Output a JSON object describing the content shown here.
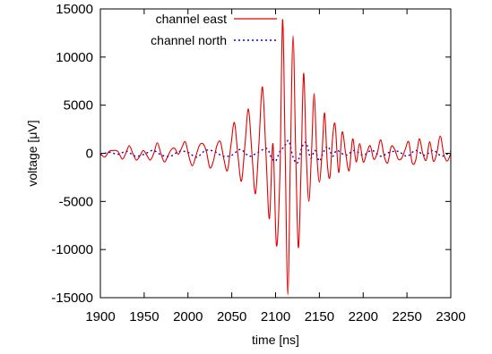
{
  "chart_data": {
    "type": "line",
    "xlabel": "time [ns]",
    "ylabel": "voltage [μV]",
    "xlim": [
      1900,
      2300
    ],
    "ylim": [
      -15000,
      15000
    ],
    "xticks": [
      "1900",
      "1950",
      "2000",
      "2050",
      "2100",
      "2150",
      "2200",
      "2250",
      "2300"
    ],
    "yticks": [
      "15000",
      "10000",
      "5000",
      "0",
      "-5000",
      "-10000",
      "-15000"
    ],
    "legend_position": "top-left inside",
    "grid": false,
    "series": [
      {
        "name": "channel east",
        "color": "#e00000",
        "style": "solid",
        "x": [
          1900,
          1905,
          1910,
          1915,
          1920,
          1925,
          1929,
          1933,
          1937,
          1941,
          1945,
          1949,
          1953,
          1957,
          1961,
          1965,
          1969,
          1973,
          1977,
          1981,
          1985,
          1989,
          1993,
          1997,
          2001,
          2005,
          2009,
          2013,
          2017,
          2021,
          2025,
          2029,
          2033,
          2037,
          2041,
          2045,
          2049,
          2053,
          2057,
          2061,
          2065,
          2069,
          2073,
          2077,
          2081,
          2085,
          2089,
          2093,
          2097,
          2101,
          2105,
          2108,
          2111,
          2114,
          2117,
          2120,
          2123,
          2126,
          2129,
          2132,
          2135,
          2138,
          2141,
          2144,
          2147,
          2150,
          2153,
          2156,
          2159,
          2162,
          2165,
          2168,
          2172,
          2176,
          2180,
          2184,
          2188,
          2192,
          2196,
          2200,
          2204,
          2208,
          2212,
          2216,
          2220,
          2224,
          2228,
          2232,
          2236,
          2240,
          2244,
          2248,
          2252,
          2256,
          2260,
          2264,
          2268,
          2272,
          2276,
          2280,
          2284,
          2288,
          2292,
          2296,
          2300
        ],
        "y": [
          0,
          -400,
          200,
          300,
          200,
          -600,
          0,
          800,
          0,
          -700,
          -300,
          300,
          -200,
          -700,
          0,
          1100,
          0,
          -900,
          -300,
          400,
          500,
          -100,
          600,
          1200,
          -300,
          -1300,
          -300,
          800,
          1000,
          200,
          -1500,
          -800,
          800,
          1200,
          -600,
          -1800,
          800,
          3200,
          -200,
          -2900,
          800,
          4600,
          0,
          -4200,
          1000,
          6900,
          0,
          -6800,
          1000,
          -9600,
          -2000,
          13900,
          0,
          -14700,
          0,
          12200,
          0,
          -9800,
          -2000,
          8300,
          0,
          -5000,
          0,
          6200,
          0,
          -3000,
          0,
          4200,
          -1000,
          -2500,
          1500,
          3000,
          -2000,
          2200,
          0,
          -1800,
          1500,
          -900,
          1000,
          -900,
          0,
          800,
          -600,
          0,
          1400,
          -300,
          -1000,
          700,
          400,
          -600,
          -500,
          400,
          1200,
          -1000,
          -700,
          1500,
          0,
          -700,
          1200,
          -800,
          0,
          1800,
          -100,
          -800,
          0
        ]
      },
      {
        "name": "channel north",
        "color": "#0000d0",
        "style": "dotted",
        "x": [
          1900,
          1910,
          1920,
          1930,
          1940,
          1950,
          1960,
          1970,
          1980,
          1990,
          2000,
          2010,
          2020,
          2030,
          2040,
          2050,
          2060,
          2070,
          2080,
          2090,
          2095,
          2100,
          2105,
          2110,
          2115,
          2120,
          2125,
          2130,
          2135,
          2140,
          2145,
          2150,
          2155,
          2160,
          2165,
          2170,
          2180,
          2190,
          2200,
          2210,
          2220,
          2230,
          2240,
          2250,
          2260,
          2270,
          2280,
          2290,
          2300
        ],
        "y": [
          -200,
          100,
          -100,
          200,
          -300,
          -100,
          300,
          -200,
          -300,
          200,
          100,
          -400,
          300,
          200,
          -300,
          -200,
          400,
          -300,
          100,
          500,
          -400,
          -800,
          200,
          700,
          1300,
          -400,
          -1000,
          600,
          1100,
          -500,
          300,
          -800,
          200,
          700,
          -300,
          300,
          -200,
          300,
          -200,
          300,
          -300,
          100,
          200,
          -300,
          300,
          -200,
          300,
          -300,
          200
        ]
      }
    ]
  }
}
